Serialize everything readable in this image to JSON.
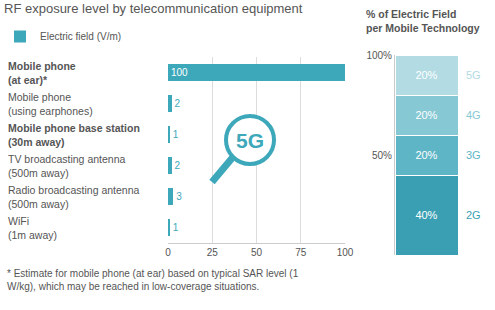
{
  "chart_data": [
    {
      "type": "bar",
      "orientation": "horizontal",
      "title": "RF exposure level by telecommunication equipment",
      "categories": [
        "Mobile phone (at ear)*",
        "Mobile phone (using earphones)",
        "Mobile phone base station (30m away)",
        "TV broadcasting antenna (500m away)",
        "Radio broadcasting antenna (500m away)",
        "WiFi (1m away)"
      ],
      "series": [
        {
          "name": "Electric field (V/m)",
          "color": "#3ea8bb",
          "values": [
            100,
            2,
            1,
            2,
            3,
            1
          ]
        }
      ],
      "xlim": [
        0,
        100
      ],
      "xticks": [
        0,
        25,
        50,
        75,
        100
      ],
      "grid": true,
      "legend": "top-left",
      "data_labels": true,
      "annotations": [
        "5G"
      ],
      "footnote": "* Estimate for mobile phone (at ear) based on typical SAR level (1 W/kg), which may be reached in low-coverage situations."
    },
    {
      "type": "bar",
      "stacked": true,
      "title": "% of Electric Field per Mobile Technology",
      "categories": [
        null
      ],
      "series": [
        {
          "name": "2G",
          "color": "#3a9fb3",
          "values": [
            40
          ],
          "value_labels": [
            "40%"
          ]
        },
        {
          "name": "3G",
          "color": "#5db5c6",
          "values": [
            20
          ],
          "value_labels": [
            "20%"
          ]
        },
        {
          "name": "4G",
          "color": "#86c8d4",
          "values": [
            20
          ],
          "value_labels": [
            "20%"
          ]
        },
        {
          "name": "5G",
          "color": "#b2dbe3",
          "values": [
            20
          ],
          "value_labels": [
            "20%"
          ]
        }
      ],
      "ylim": [
        0,
        100
      ],
      "yticks": [
        {
          "value": 50,
          "label": "50%"
        },
        {
          "value": 100,
          "label": "100%"
        }
      ],
      "data_labels": true,
      "tick_labels": "y"
    }
  ]
}
